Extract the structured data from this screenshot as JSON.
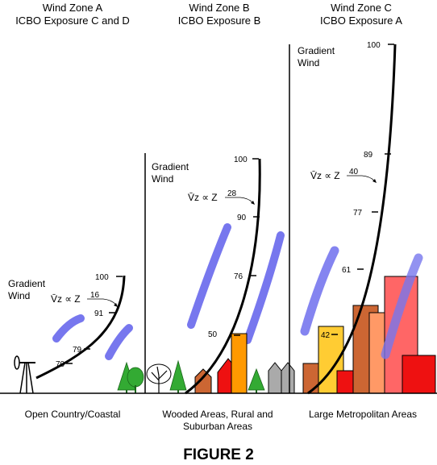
{
  "zones": [
    {
      "header_line1": "Wind Zone A",
      "header_line2": "ICBO Exposure C and D",
      "gradient_label_1": "Gradient",
      "gradient_label_2": "Wind",
      "formula": "V̄z ∝ Z",
      "exponent": "16",
      "profile_values": [
        "100",
        "91",
        "79",
        "70"
      ],
      "caption_line1": "Open Country/Coastal",
      "caption_line2": ""
    },
    {
      "header_line1": "Wind Zone B",
      "header_line2": "ICBO Exposure B",
      "gradient_label_1": "Gradient",
      "gradient_label_2": "Wind",
      "formula": "V̄z ∝ Z",
      "exponent": "28",
      "profile_values": [
        "100",
        "90",
        "76",
        "50"
      ],
      "caption_line1": "Wooded Areas, Rural and",
      "caption_line2": "Suburban Areas"
    },
    {
      "header_line1": "Wind Zone C",
      "header_line2": "ICBO Exposure A",
      "gradient_label_1": "Gradient",
      "gradient_label_2": "Wind",
      "formula": "V̄z ∝ Z",
      "exponent": "40",
      "profile_values": [
        "100",
        "89",
        "77",
        "61",
        "42"
      ],
      "caption_line1": "Large Metropolitan Areas",
      "caption_line2": ""
    }
  ],
  "figure_label": "FIGURE 2",
  "colors": {
    "wind_streak": "#7777ee",
    "building_brown": "#cc6633",
    "building_red": "#ee1111",
    "building_orange": "#ff9900",
    "building_yellow": "#ffcc33",
    "building_salmon": "#ff9966",
    "building_pink": "#ff6666",
    "building_gray": "#aaaaaa",
    "tree_green": "#33aa33"
  }
}
